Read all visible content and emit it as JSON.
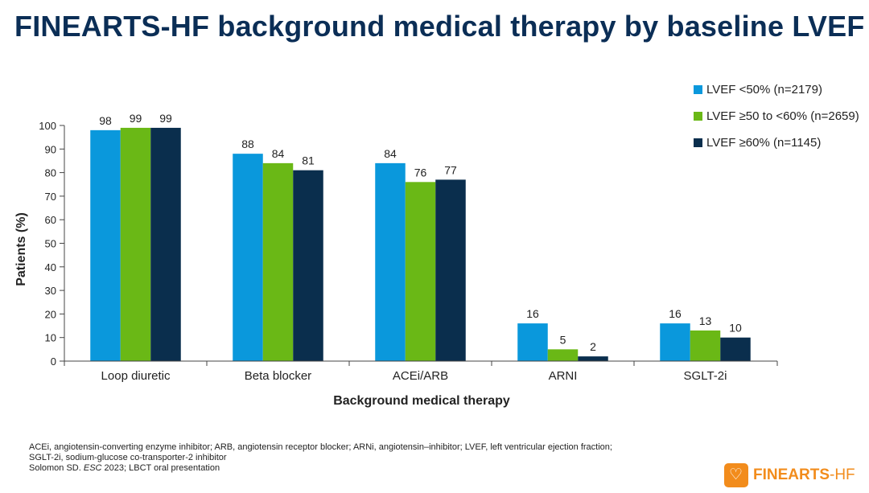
{
  "title": "FINEARTS-HF background medical therapy by baseline LVEF",
  "legend": [
    {
      "label": "LVEF <50% (n=2179)",
      "color": "#0a98dc"
    },
    {
      "label": "LVEF ≥50 to <60% (n=2659)",
      "color": "#6ab816"
    },
    {
      "label": "LVEF ≥60% (n=1145)",
      "color": "#0a2e4d"
    }
  ],
  "chart_data": {
    "type": "bar",
    "title": "",
    "xlabel": "Background medical therapy",
    "ylabel": "Patients (%)",
    "ylim": [
      0,
      100
    ],
    "yticks": [
      0,
      10,
      20,
      30,
      40,
      50,
      60,
      70,
      80,
      90,
      100
    ],
    "categories": [
      "Loop diuretic",
      "Beta blocker",
      "ACEi/ARB",
      "ARNI",
      "SGLT-2i"
    ],
    "series": [
      {
        "name": "LVEF <50% (n=2179)",
        "color": "#0a98dc",
        "values": [
          98,
          88,
          84,
          16,
          16
        ]
      },
      {
        "name": "LVEF ≥50 to <60% (n=2659)",
        "color": "#6ab816",
        "values": [
          99,
          84,
          76,
          5,
          13
        ]
      },
      {
        "name": "LVEF ≥60% (n=1145)",
        "color": "#0a2e4d",
        "values": [
          99,
          81,
          77,
          2,
          10
        ]
      }
    ],
    "data_labels": true,
    "grid": false,
    "legend_position": "top-right"
  },
  "footnotes": [
    "ACEi, angiotensin-converting enzyme inhibitor; ARB, angiotensin receptor blocker; ARNi, angiotensin–inhibitor; LVEF, left ventricular ejection fraction;",
    "SGLT-2i, sodium-glucose co-transporter-2 inhibitor"
  ],
  "citation": {
    "prefix": "Solomon SD. ",
    "journal": "ESC",
    "suffix": " 2023; LBCT oral presentation"
  },
  "logo": {
    "name": "FINEARTS",
    "suffix": "-HF",
    "icon": "heart-icon",
    "color": "#f28c1c"
  }
}
